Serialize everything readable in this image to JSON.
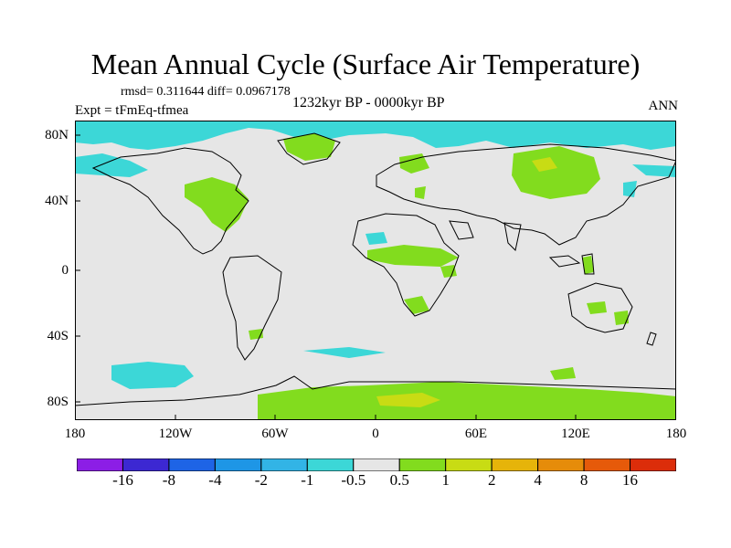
{
  "title": "Mean Annual Cycle (Surface Air Temperature)",
  "stats": "rmsd= 0.311644 diff= 0.0967178",
  "experiment": "Expt = tFmEq-tfmea",
  "period": "1232kyr BP - 0000kyr BP",
  "season": "ANN",
  "lat_labels": [
    "80N",
    "40N",
    "0",
    "40S",
    "80S"
  ],
  "lon_labels": [
    "180",
    "120W",
    "60W",
    "0",
    "60E",
    "120E",
    "180"
  ],
  "colorbar": {
    "colors": [
      "#8c1ee6",
      "#3c28d2",
      "#1e64e6",
      "#1e96e6",
      "#32b4e6",
      "#3cd7d7",
      "#e6e6e6",
      "#82dc1e",
      "#c8dc14",
      "#e6b40a",
      "#e68c0a",
      "#e65a0a",
      "#dc2d0a"
    ],
    "labels": [
      "-16",
      "-8",
      "-4",
      "-2",
      "-1",
      "-0.5",
      "0.5",
      "1",
      "2",
      "4",
      "8",
      "16"
    ]
  },
  "colors": {
    "background_field": "#e6e6e6",
    "warm_anomaly": "#82dc1e",
    "cool_anomaly": "#3cd7d7"
  }
}
